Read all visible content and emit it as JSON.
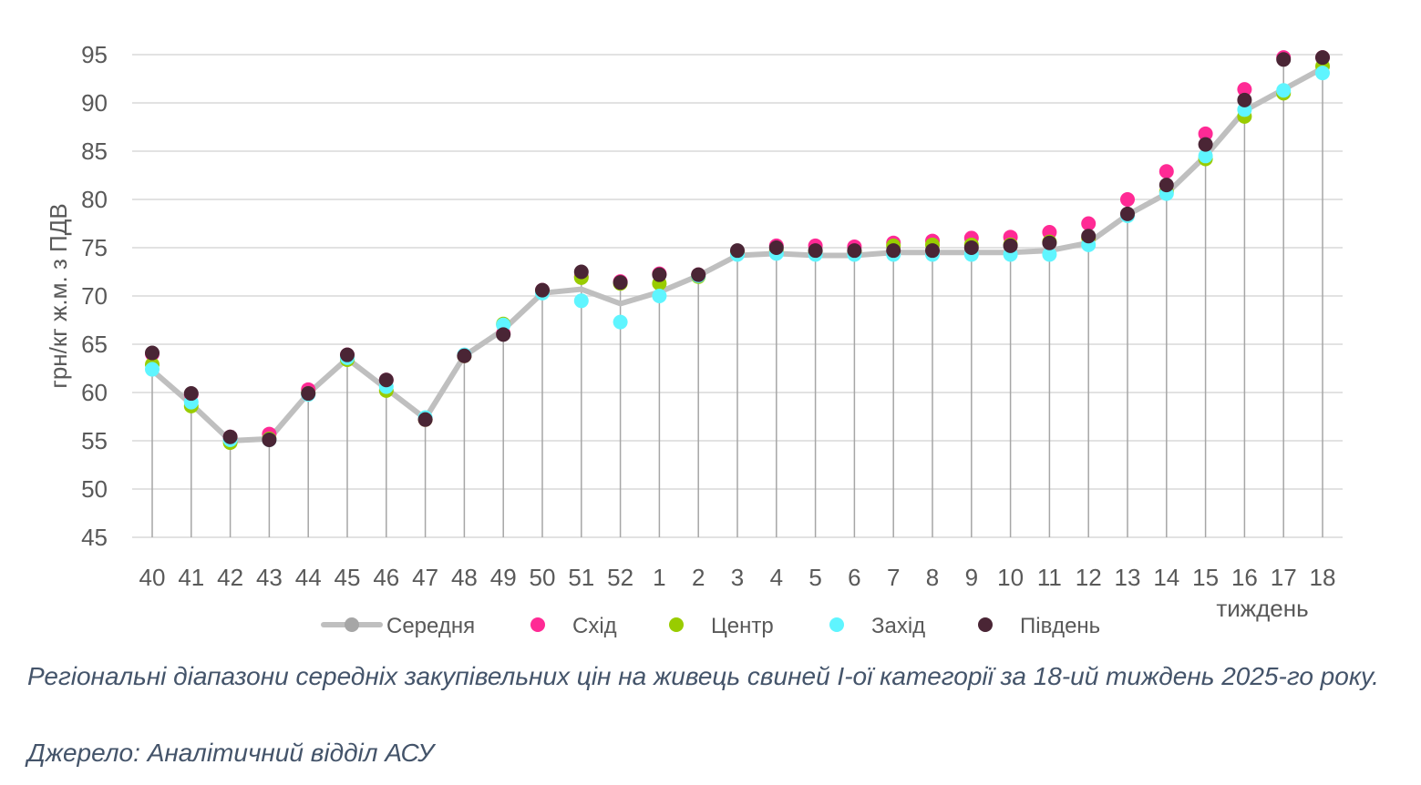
{
  "chart_data": {
    "type": "line",
    "ylabel": "грн/кг ж.м. з ПДВ",
    "xlabel": "тиждень",
    "ylim": [
      45,
      95
    ],
    "yticks": [
      45,
      50,
      55,
      60,
      65,
      70,
      75,
      80,
      85,
      90,
      95
    ],
    "categories": [
      "40",
      "41",
      "42",
      "43",
      "44",
      "45",
      "46",
      "47",
      "48",
      "49",
      "50",
      "51",
      "52",
      "1",
      "2",
      "3",
      "4",
      "5",
      "6",
      "7",
      "8",
      "9",
      "10",
      "11",
      "12",
      "13",
      "14",
      "15",
      "16",
      "17",
      "18"
    ],
    "grid": true,
    "legend_position": "bottom",
    "series": [
      {
        "name": "Середня",
        "color": "#bfbfbf",
        "style": "line",
        "values": [
          62.3,
          58.8,
          55.0,
          55.2,
          59.9,
          63.5,
          60.4,
          57.3,
          63.8,
          66.5,
          70.3,
          70.7,
          69.2,
          70.4,
          72.1,
          74.2,
          74.4,
          74.2,
          74.2,
          74.5,
          74.5,
          74.5,
          74.5,
          74.7,
          75.5,
          78.4,
          80.6,
          84.5,
          89.2,
          91.4,
          93.6
        ]
      },
      {
        "name": "Схід",
        "color": "#ff2a95",
        "style": "markers",
        "values": [
          64.0,
          59.8,
          55.4,
          55.7,
          60.3,
          63.9,
          61.3,
          57.2,
          63.8,
          66.1,
          70.6,
          72.0,
          71.5,
          72.3,
          72.2,
          74.6,
          75.2,
          75.2,
          75.1,
          75.5,
          75.7,
          76.0,
          76.1,
          76.6,
          77.5,
          80.0,
          82.9,
          86.8,
          91.4,
          94.7,
          94.7
        ]
      },
      {
        "name": "Центр",
        "color": "#99cc00",
        "style": "markers",
        "values": [
          62.9,
          58.6,
          54.8,
          55.2,
          59.9,
          63.4,
          60.2,
          57.2,
          63.8,
          67.1,
          70.5,
          71.9,
          71.3,
          71.3,
          72.0,
          74.5,
          74.7,
          74.6,
          74.6,
          75.2,
          75.3,
          75.3,
          75.3,
          75.6,
          76.0,
          78.4,
          80.8,
          84.2,
          88.6,
          91.0,
          93.8
        ]
      },
      {
        "name": "Захід",
        "color": "#5ff5ff",
        "style": "markers",
        "values": [
          62.4,
          59.0,
          55.1,
          55.1,
          59.8,
          63.6,
          60.6,
          57.4,
          63.9,
          67.0,
          70.3,
          69.5,
          67.3,
          70.0,
          72.1,
          74.3,
          74.4,
          74.3,
          74.3,
          74.3,
          74.3,
          74.3,
          74.3,
          74.3,
          75.3,
          78.3,
          80.6,
          84.5,
          89.3,
          91.3,
          93.1
        ]
      },
      {
        "name": "Південь",
        "color": "#4a2535",
        "style": "markers",
        "values": [
          64.1,
          59.9,
          55.4,
          55.1,
          59.9,
          63.9,
          61.3,
          57.2,
          63.8,
          66.0,
          70.6,
          72.5,
          71.4,
          72.2,
          72.2,
          74.7,
          75.0,
          74.7,
          74.7,
          74.7,
          74.7,
          75.0,
          75.2,
          75.5,
          76.2,
          78.5,
          81.5,
          85.7,
          90.3,
          94.5,
          94.7
        ]
      }
    ]
  },
  "caption": {
    "line1": "Регіональні діапазони середніх закупівельних цін на живець свиней І-ої категорії за 18-ий тиждень 2025-го року.",
    "line2": "Джерело: Аналітичний відділ АСУ"
  }
}
